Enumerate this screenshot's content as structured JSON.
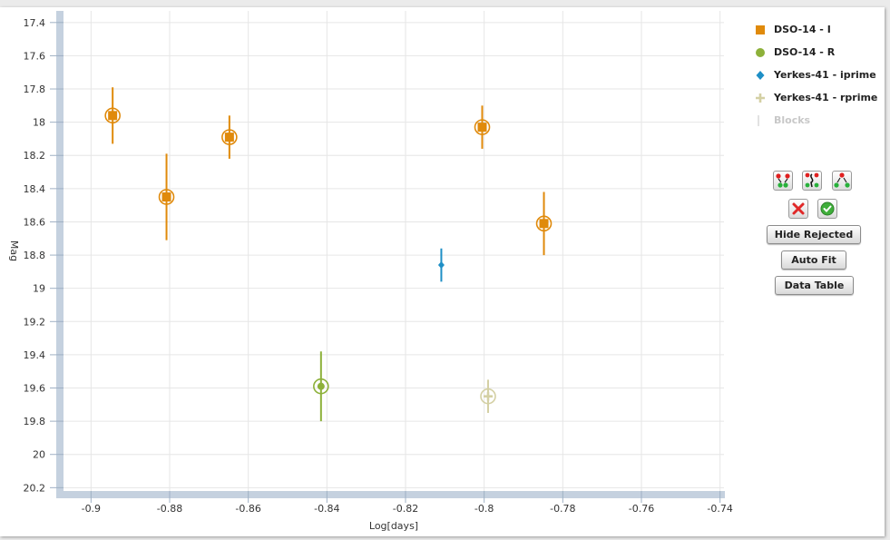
{
  "chart_data": {
    "type": "scatter",
    "xlabel": "Log[days]",
    "ylabel": "Mag",
    "xlim": [
      -0.907,
      -0.739
    ],
    "ylim": [
      20.22,
      17.33
    ],
    "y_inverted": true,
    "x_ticks": [
      -0.9,
      -0.88,
      -0.86,
      -0.84,
      -0.82,
      -0.8,
      -0.78,
      -0.76,
      -0.74
    ],
    "x_tick_labels": [
      "-0.9",
      "-0.88",
      "-0.86",
      "-0.84",
      "-0.82",
      "-0.8",
      "-0.78",
      "-0.76",
      "-0.74"
    ],
    "y_ticks": [
      17.4,
      17.6,
      17.8,
      18,
      18.2,
      18.4,
      18.6,
      18.8,
      19,
      19.2,
      19.4,
      19.6,
      19.8,
      20,
      20.2
    ],
    "y_tick_labels": [
      "17.4",
      "17.6",
      "17.8",
      "18",
      "18.2",
      "18.4",
      "18.6",
      "18.8",
      "19",
      "19.2",
      "19.4",
      "19.6",
      "19.8",
      "20",
      "20.2"
    ],
    "grid": true,
    "legend_position": "right",
    "series": [
      {
        "name": "DSO-14 - I",
        "marker": "square",
        "color": "#e08a0b",
        "highlight_ring": true,
        "points": [
          {
            "x": -0.8945,
            "y": 17.96,
            "err": 0.17
          },
          {
            "x": -0.8808,
            "y": 18.45,
            "err": 0.26
          },
          {
            "x": -0.8648,
            "y": 18.09,
            "err": 0.13
          },
          {
            "x": -0.8005,
            "y": 18.03,
            "err": 0.13
          },
          {
            "x": -0.7848,
            "y": 18.61,
            "err": 0.19
          }
        ]
      },
      {
        "name": "DSO-14 - R",
        "marker": "circle",
        "color": "#8db13a",
        "highlight_ring": true,
        "points": [
          {
            "x": -0.8415,
            "y": 19.59,
            "err": 0.21
          }
        ]
      },
      {
        "name": "Yerkes-41 - iprime",
        "marker": "diamond",
        "color": "#1e8fc6",
        "highlight_ring": false,
        "points": [
          {
            "x": -0.8109,
            "y": 18.86,
            "err": 0.1
          }
        ]
      },
      {
        "name": "Yerkes-41 - rprime",
        "marker": "cross",
        "color": "#d4d0a4",
        "highlight_ring": true,
        "points": [
          {
            "x": -0.799,
            "y": 19.65,
            "err": 0.1
          }
        ]
      }
    ]
  },
  "legend": {
    "items": [
      {
        "label": "DSO-14 - I",
        "marker": "square",
        "color": "#e08a0b",
        "enabled": true
      },
      {
        "label": "DSO-14 - R",
        "marker": "circle",
        "color": "#8db13a",
        "enabled": true
      },
      {
        "label": "Yerkes-41 - iprime",
        "marker": "diamond",
        "color": "#1e8fc6",
        "enabled": true
      },
      {
        "label": "Yerkes-41 - rprime",
        "marker": "cross",
        "color": "#d4d0a4",
        "enabled": true
      },
      {
        "label": "Blocks",
        "marker": "line",
        "color": "#d8d8d8",
        "enabled": false
      }
    ]
  },
  "tools": {
    "icon_buttons": [
      "select-points-icon",
      "lasso-select-icon",
      "select-group-icon"
    ],
    "reject_icon": "reject-x-icon",
    "accept_icon": "accept-check-icon",
    "hide_rejected_label": "Hide Rejected",
    "auto_fit_label": "Auto Fit",
    "data_table_label": "Data Table"
  },
  "colors": {
    "axis_bar": "#c5d1df",
    "grid": "#e6e6e6"
  }
}
